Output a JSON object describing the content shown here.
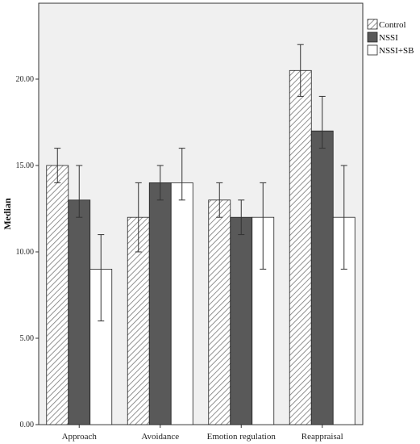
{
  "chart_data": {
    "type": "bar",
    "title": "",
    "xlabel": "",
    "ylabel": "Median",
    "ylim": [
      0,
      25
    ],
    "yticks": [
      0,
      5,
      10,
      15,
      20
    ],
    "ytick_labels": [
      "0.00",
      "5.00",
      "10.00",
      "15.00",
      "20.00"
    ],
    "categories": [
      "Approach",
      "Avoidance",
      "Emotion regulation",
      "Reappraisal"
    ],
    "series": [
      {
        "name": "Control",
        "values": [
          15,
          12,
          13,
          20.5
        ],
        "err_low": [
          14,
          10,
          12,
          19
        ],
        "err_high": [
          16,
          14,
          14,
          22
        ],
        "fill": "hatched"
      },
      {
        "name": "NSSI",
        "values": [
          13,
          14,
          12,
          17
        ],
        "err_low": [
          12,
          13,
          11,
          16
        ],
        "err_high": [
          15,
          15,
          13,
          19
        ],
        "fill": "#595959"
      },
      {
        "name": "NSSI+SB",
        "values": [
          9,
          14,
          12,
          12
        ],
        "err_low": [
          6,
          13,
          9,
          9
        ],
        "err_high": [
          11,
          16,
          14,
          15
        ],
        "fill": "#ffffff"
      }
    ],
    "grid": false,
    "legend_position": "top-right",
    "plot_background": "#f0f0f0"
  }
}
